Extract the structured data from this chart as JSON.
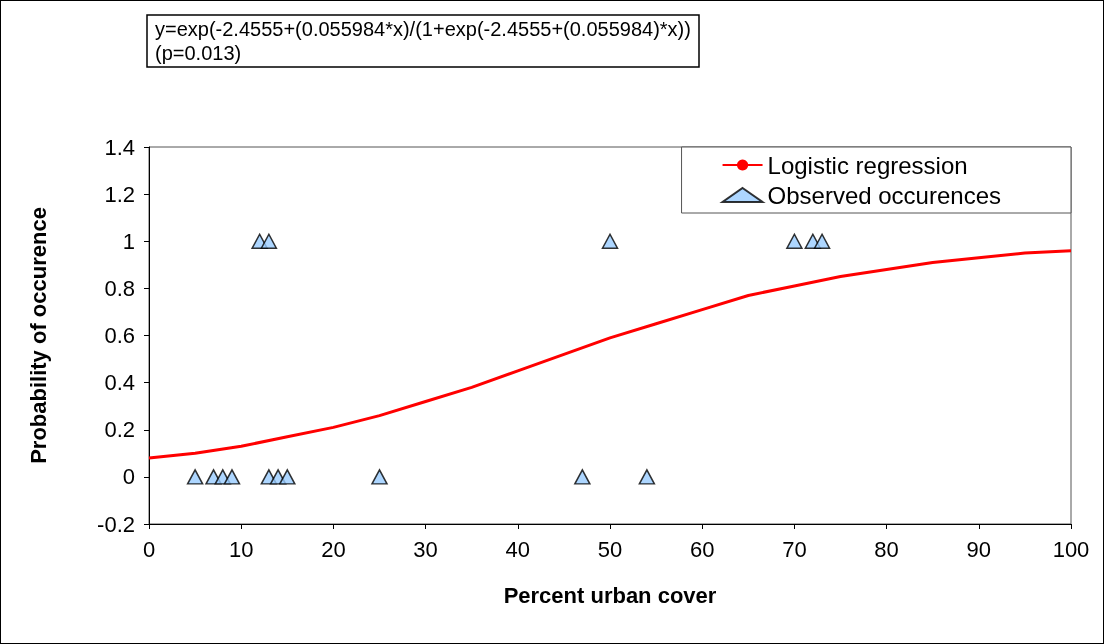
{
  "chart_data": {
    "type": "scatter",
    "title": "y=exp(-2.4555+(0.055984*x)/(1+exp(-2.4555+(0.055984)*x))",
    "subtitle": "(p=0.013)",
    "xlabel": "Percent urban cover",
    "ylabel": "Probability of occurence",
    "series": [
      {
        "name": "Logistic regression",
        "type": "line",
        "color": "#ff0000",
        "marker": "none",
        "line_style": "solid",
        "x": [
          0,
          5,
          10,
          15,
          20,
          25,
          30,
          35,
          40,
          45,
          50,
          55,
          60,
          65,
          70,
          75,
          80,
          85,
          90,
          95,
          100
        ],
        "values": [
          0.08,
          0.1,
          0.13,
          0.17,
          0.21,
          0.26,
          0.32,
          0.38,
          0.45,
          0.52,
          0.59,
          0.65,
          0.71,
          0.77,
          0.81,
          0.85,
          0.88,
          0.91,
          0.93,
          0.95,
          0.96
        ]
      },
      {
        "name": "Observed occurences",
        "type": "scatter",
        "color": "#99ccff",
        "marker": "triangle",
        "x": [
          12,
          13,
          50,
          70,
          72,
          73,
          5,
          7,
          8,
          9,
          13,
          14,
          15,
          25,
          47,
          54
        ],
        "values": [
          1,
          1,
          1,
          1,
          1,
          1,
          0,
          0,
          0,
          0,
          0,
          0,
          0,
          0,
          0,
          0
        ]
      }
    ],
    "xlim": [
      0,
      100
    ],
    "xticks": [
      0,
      10,
      20,
      30,
      40,
      50,
      60,
      70,
      80,
      90,
      100
    ],
    "ylim": [
      -0.2,
      1.4
    ],
    "yticks": [
      -0.2,
      0,
      0.2,
      0.4,
      0.6,
      0.8,
      1,
      1.2,
      1.4
    ],
    "grid": false,
    "legend": "top right"
  }
}
